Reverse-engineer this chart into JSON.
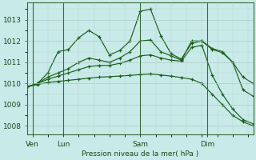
{
  "background_color": "#c8eae8",
  "grid_color": "#b0c8c8",
  "line_color": "#1a5c1a",
  "xlabel": "Pression niveau de la mer( hPa )",
  "ylim": [
    1007.6,
    1013.8
  ],
  "xlim": [
    0,
    22
  ],
  "yticks": [
    1008,
    1009,
    1010,
    1011,
    1012,
    1013
  ],
  "xtick_positions": [
    0.5,
    3.5,
    11,
    17.5
  ],
  "xtick_labels": [
    "Ven",
    "Lun",
    "Sam",
    "Dim"
  ],
  "vlines": [
    0.5,
    3.5,
    11,
    17.5
  ],
  "lines": [
    {
      "x": [
        0,
        1,
        2,
        3,
        4,
        5,
        6,
        7,
        8,
        9,
        10,
        11,
        12,
        13,
        14,
        15,
        16,
        17,
        18,
        19,
        20,
        21,
        22
      ],
      "y": [
        1009.85,
        1010.0,
        1010.5,
        1011.5,
        1011.6,
        1012.15,
        1012.5,
        1012.2,
        1011.35,
        1011.55,
        1012.0,
        1013.4,
        1013.5,
        1012.25,
        1011.4,
        1011.15,
        1011.9,
        1012.0,
        1011.65,
        1011.5,
        1011.0,
        1010.3,
        1010.0
      ]
    },
    {
      "x": [
        0,
        1,
        2,
        3,
        4,
        5,
        6,
        7,
        8,
        9,
        10,
        11,
        12,
        13,
        14,
        15,
        16,
        17,
        18,
        19,
        20,
        21,
        22
      ],
      "y": [
        1009.85,
        1010.0,
        1010.3,
        1010.5,
        1010.7,
        1011.0,
        1011.2,
        1011.1,
        1011.0,
        1011.2,
        1011.5,
        1012.0,
        1012.05,
        1011.5,
        1011.3,
        1011.1,
        1012.0,
        1012.0,
        1011.6,
        1011.45,
        1011.0,
        1009.7,
        1009.4
      ]
    },
    {
      "x": [
        0,
        1,
        2,
        3,
        4,
        5,
        6,
        7,
        8,
        9,
        10,
        11,
        12,
        13,
        14,
        15,
        16,
        17,
        18,
        19,
        20,
        21,
        22
      ],
      "y": [
        1009.85,
        1010.0,
        1010.2,
        1010.35,
        1010.5,
        1010.65,
        1010.8,
        1010.85,
        1010.85,
        1010.95,
        1011.1,
        1011.3,
        1011.35,
        1011.2,
        1011.1,
        1011.05,
        1011.7,
        1011.8,
        1010.4,
        1009.5,
        1008.8,
        1008.3,
        1008.1
      ]
    },
    {
      "x": [
        0,
        1,
        2,
        3,
        4,
        5,
        6,
        7,
        8,
        9,
        10,
        11,
        12,
        13,
        14,
        15,
        16,
        17,
        18,
        19,
        20,
        21,
        22
      ],
      "y": [
        1009.85,
        1009.95,
        1010.05,
        1010.1,
        1010.15,
        1010.2,
        1010.25,
        1010.3,
        1010.32,
        1010.35,
        1010.38,
        1010.42,
        1010.45,
        1010.4,
        1010.35,
        1010.28,
        1010.2,
        1010.0,
        1009.5,
        1009.0,
        1008.5,
        1008.2,
        1008.0
      ]
    }
  ]
}
